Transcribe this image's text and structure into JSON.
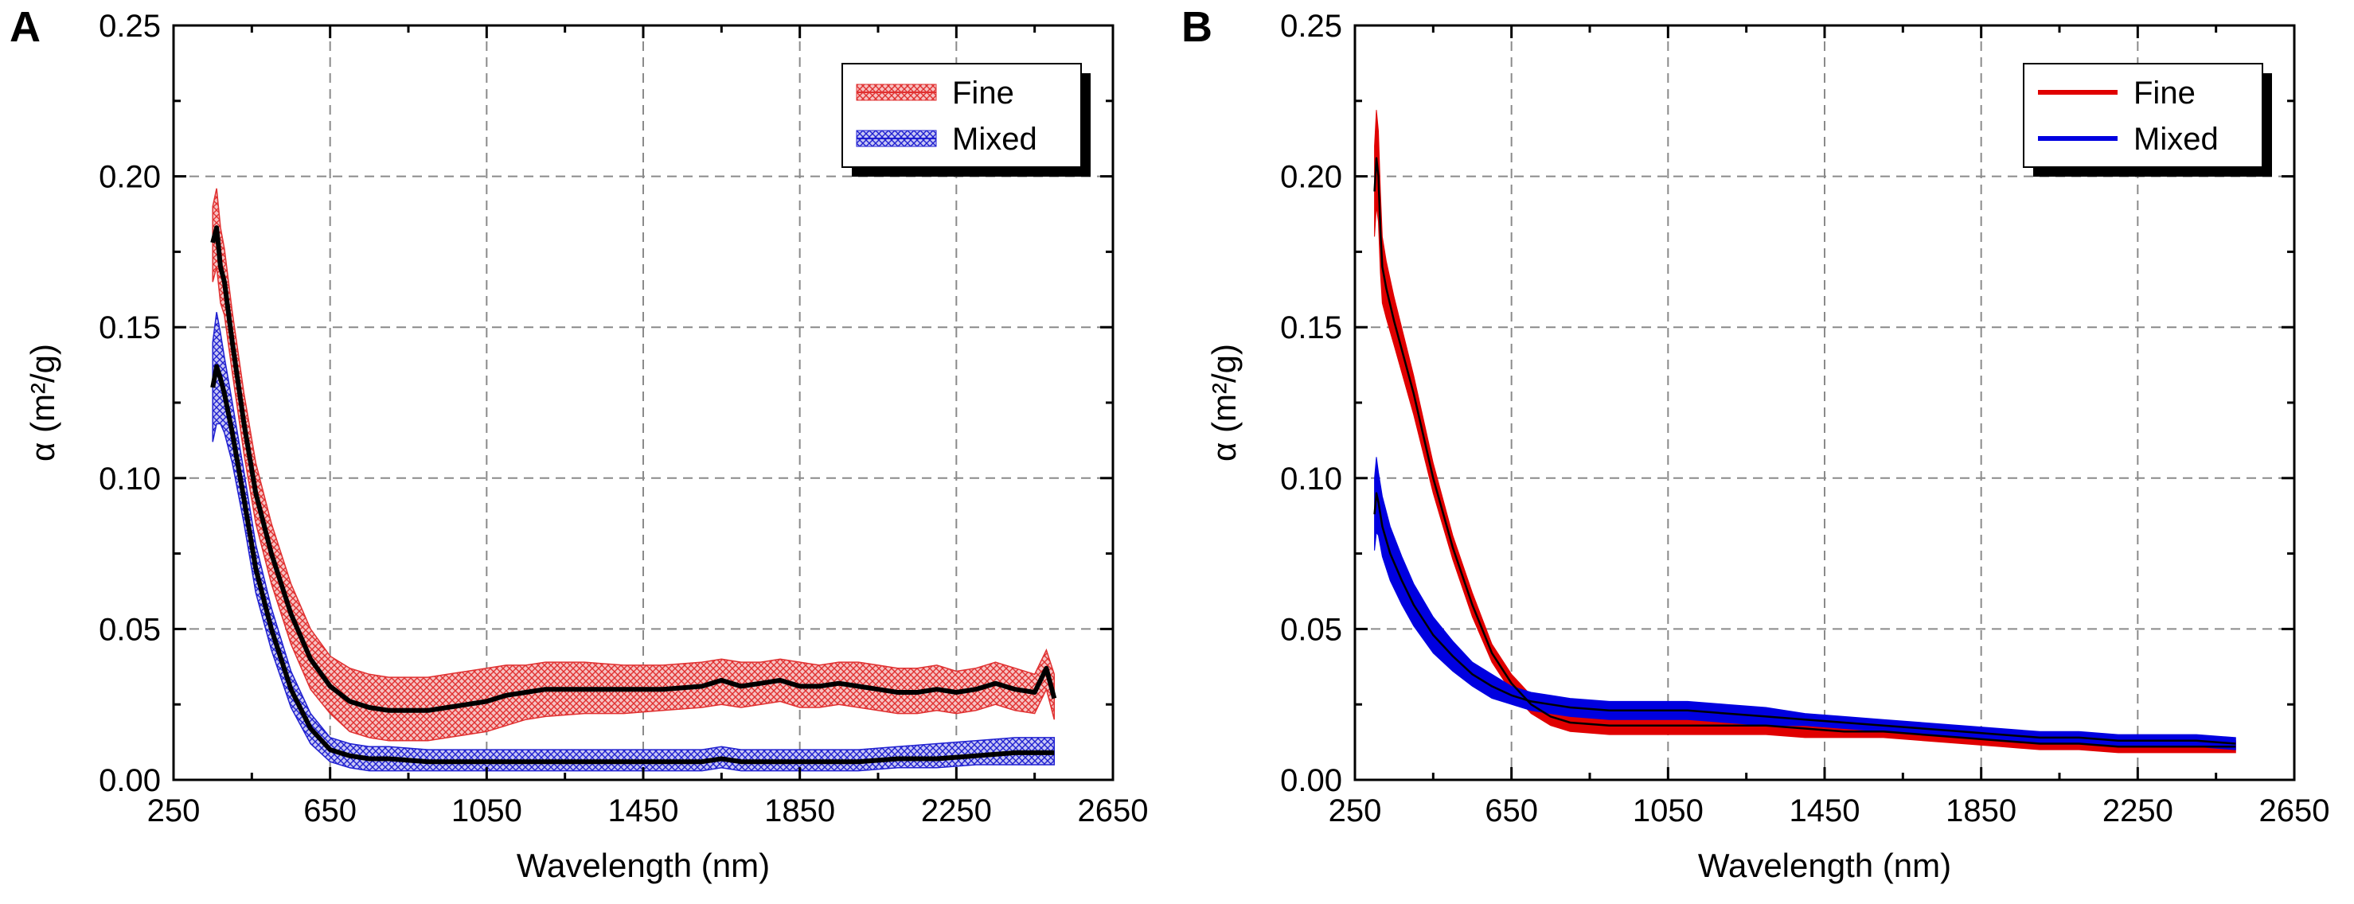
{
  "chart_data": [
    {
      "type": "area",
      "panel_label": "A",
      "title": "",
      "xlabel": "Wavelength (nm)",
      "ylabel": "α (m²/g)",
      "xlim": [
        250,
        2650
      ],
      "ylim": [
        0,
        0.25
      ],
      "xticks": [
        250,
        650,
        1050,
        1450,
        1850,
        2250,
        2650
      ],
      "yticks": [
        0.0,
        0.05,
        0.1,
        0.15,
        0.2,
        0.25
      ],
      "xtick_labels": [
        "250",
        "650",
        "1050",
        "1450",
        "1850",
        "2250",
        "2650"
      ],
      "ytick_labels": [
        "0.00",
        "0.05",
        "0.10",
        "0.15",
        "0.20",
        "0.25"
      ],
      "grid": true,
      "legend_position": "top-right",
      "band_style": "hatched",
      "series": [
        {
          "name": "Fine",
          "color": "#e03030",
          "x": [
            350,
            360,
            370,
            380,
            400,
            430,
            460,
            500,
            550,
            600,
            650,
            700,
            750,
            800,
            850,
            900,
            950,
            1000,
            1050,
            1100,
            1150,
            1200,
            1300,
            1400,
            1500,
            1600,
            1650,
            1700,
            1750,
            1800,
            1850,
            1900,
            1950,
            2000,
            2050,
            2100,
            2150,
            2200,
            2250,
            2300,
            2350,
            2400,
            2450,
            2480,
            2500
          ],
          "mean": [
            0.178,
            0.183,
            0.17,
            0.165,
            0.145,
            0.118,
            0.095,
            0.075,
            0.055,
            0.04,
            0.031,
            0.026,
            0.024,
            0.023,
            0.023,
            0.023,
            0.024,
            0.025,
            0.026,
            0.028,
            0.029,
            0.03,
            0.03,
            0.03,
            0.03,
            0.031,
            0.033,
            0.031,
            0.032,
            0.033,
            0.031,
            0.031,
            0.032,
            0.031,
            0.03,
            0.029,
            0.029,
            0.03,
            0.029,
            0.03,
            0.032,
            0.03,
            0.029,
            0.037,
            0.027
          ],
          "upper": [
            0.19,
            0.196,
            0.183,
            0.176,
            0.155,
            0.128,
            0.105,
            0.085,
            0.065,
            0.05,
            0.041,
            0.037,
            0.035,
            0.034,
            0.034,
            0.034,
            0.035,
            0.036,
            0.037,
            0.038,
            0.038,
            0.039,
            0.039,
            0.038,
            0.038,
            0.039,
            0.04,
            0.039,
            0.039,
            0.04,
            0.039,
            0.038,
            0.039,
            0.039,
            0.038,
            0.037,
            0.037,
            0.038,
            0.036,
            0.037,
            0.039,
            0.037,
            0.035,
            0.043,
            0.035
          ],
          "lower": [
            0.165,
            0.17,
            0.158,
            0.154,
            0.135,
            0.108,
            0.085,
            0.065,
            0.045,
            0.03,
            0.022,
            0.016,
            0.014,
            0.013,
            0.013,
            0.013,
            0.014,
            0.015,
            0.016,
            0.018,
            0.02,
            0.021,
            0.022,
            0.022,
            0.023,
            0.024,
            0.025,
            0.024,
            0.025,
            0.026,
            0.024,
            0.024,
            0.025,
            0.024,
            0.023,
            0.022,
            0.022,
            0.023,
            0.022,
            0.023,
            0.025,
            0.023,
            0.022,
            0.03,
            0.02
          ]
        },
        {
          "name": "Mixed",
          "color": "#2020d0",
          "x": [
            350,
            360,
            370,
            380,
            400,
            430,
            460,
            500,
            550,
            600,
            650,
            700,
            750,
            800,
            900,
            1000,
            1100,
            1200,
            1300,
            1400,
            1500,
            1600,
            1650,
            1700,
            1800,
            1900,
            2000,
            2100,
            2200,
            2300,
            2400,
            2450,
            2500
          ],
          "mean": [
            0.13,
            0.137,
            0.133,
            0.128,
            0.115,
            0.093,
            0.07,
            0.05,
            0.03,
            0.017,
            0.01,
            0.008,
            0.007,
            0.007,
            0.006,
            0.006,
            0.006,
            0.006,
            0.006,
            0.006,
            0.006,
            0.006,
            0.007,
            0.006,
            0.006,
            0.006,
            0.006,
            0.007,
            0.007,
            0.008,
            0.009,
            0.009,
            0.009
          ],
          "upper": [
            0.145,
            0.155,
            0.148,
            0.14,
            0.125,
            0.102,
            0.078,
            0.057,
            0.036,
            0.022,
            0.014,
            0.012,
            0.011,
            0.011,
            0.01,
            0.01,
            0.01,
            0.01,
            0.01,
            0.01,
            0.01,
            0.01,
            0.011,
            0.01,
            0.01,
            0.01,
            0.01,
            0.011,
            0.012,
            0.013,
            0.014,
            0.014,
            0.014
          ],
          "lower": [
            0.112,
            0.118,
            0.118,
            0.115,
            0.105,
            0.085,
            0.062,
            0.043,
            0.024,
            0.012,
            0.006,
            0.004,
            0.003,
            0.003,
            0.003,
            0.003,
            0.003,
            0.003,
            0.003,
            0.003,
            0.003,
            0.003,
            0.004,
            0.003,
            0.003,
            0.003,
            0.003,
            0.004,
            0.004,
            0.005,
            0.005,
            0.005,
            0.005
          ]
        }
      ]
    },
    {
      "type": "area",
      "panel_label": "B",
      "title": "",
      "xlabel": "Wavelength (nm)",
      "ylabel": "α (m²/g)",
      "xlim": [
        250,
        2650
      ],
      "ylim": [
        0,
        0.25
      ],
      "xticks": [
        250,
        650,
        1050,
        1450,
        1850,
        2250,
        2650
      ],
      "yticks": [
        0.0,
        0.05,
        0.1,
        0.15,
        0.2,
        0.25
      ],
      "xtick_labels": [
        "250",
        "650",
        "1050",
        "1450",
        "1850",
        "2250",
        "2650"
      ],
      "ytick_labels": [
        "0.00",
        "0.05",
        "0.10",
        "0.15",
        "0.20",
        "0.25"
      ],
      "grid": true,
      "legend_position": "top-right",
      "band_style": "solid",
      "series": [
        {
          "name": "Fine",
          "color": "#e00000",
          "x": [
            300,
            305,
            310,
            315,
            320,
            330,
            350,
            400,
            450,
            500,
            550,
            600,
            650,
            700,
            750,
            800,
            900,
            1000,
            1100,
            1200,
            1300,
            1400,
            1500,
            1600,
            1700,
            1800,
            1900,
            2000,
            2100,
            2200,
            2300,
            2400,
            2500
          ],
          "mean": [
            0.195,
            0.206,
            0.2,
            0.182,
            0.17,
            0.163,
            0.152,
            0.128,
            0.1,
            0.077,
            0.058,
            0.042,
            0.032,
            0.025,
            0.021,
            0.019,
            0.018,
            0.018,
            0.018,
            0.018,
            0.018,
            0.017,
            0.016,
            0.016,
            0.015,
            0.014,
            0.013,
            0.012,
            0.012,
            0.011,
            0.011,
            0.011,
            0.011
          ],
          "upper": [
            0.21,
            0.222,
            0.215,
            0.195,
            0.18,
            0.172,
            0.16,
            0.134,
            0.105,
            0.081,
            0.062,
            0.045,
            0.035,
            0.028,
            0.024,
            0.022,
            0.021,
            0.021,
            0.021,
            0.021,
            0.02,
            0.019,
            0.018,
            0.018,
            0.017,
            0.016,
            0.015,
            0.014,
            0.014,
            0.013,
            0.013,
            0.013,
            0.013
          ],
          "lower": [
            0.18,
            0.19,
            0.185,
            0.168,
            0.158,
            0.153,
            0.144,
            0.121,
            0.095,
            0.073,
            0.054,
            0.039,
            0.029,
            0.022,
            0.018,
            0.016,
            0.015,
            0.015,
            0.015,
            0.015,
            0.015,
            0.014,
            0.014,
            0.014,
            0.013,
            0.012,
            0.011,
            0.01,
            0.01,
            0.009,
            0.009,
            0.009,
            0.009
          ]
        },
        {
          "name": "Mixed",
          "color": "#0000e0",
          "x": [
            300,
            305,
            310,
            320,
            340,
            370,
            400,
            450,
            500,
            550,
            600,
            650,
            700,
            750,
            800,
            900,
            1000,
            1100,
            1200,
            1300,
            1400,
            1500,
            1600,
            1700,
            1800,
            1900,
            2000,
            2100,
            2200,
            2300,
            2400,
            2500
          ],
          "mean": [
            0.088,
            0.095,
            0.092,
            0.084,
            0.075,
            0.066,
            0.058,
            0.048,
            0.041,
            0.035,
            0.031,
            0.028,
            0.026,
            0.025,
            0.024,
            0.023,
            0.023,
            0.023,
            0.022,
            0.021,
            0.02,
            0.019,
            0.018,
            0.017,
            0.016,
            0.015,
            0.014,
            0.014,
            0.013,
            0.013,
            0.013,
            0.012
          ],
          "upper": [
            0.1,
            0.107,
            0.102,
            0.094,
            0.084,
            0.074,
            0.065,
            0.054,
            0.046,
            0.039,
            0.035,
            0.031,
            0.029,
            0.028,
            0.027,
            0.026,
            0.026,
            0.026,
            0.025,
            0.024,
            0.022,
            0.021,
            0.02,
            0.019,
            0.018,
            0.017,
            0.016,
            0.016,
            0.015,
            0.015,
            0.015,
            0.014
          ],
          "lower": [
            0.076,
            0.082,
            0.081,
            0.074,
            0.066,
            0.058,
            0.051,
            0.042,
            0.036,
            0.031,
            0.027,
            0.025,
            0.023,
            0.022,
            0.021,
            0.02,
            0.02,
            0.02,
            0.019,
            0.018,
            0.018,
            0.017,
            0.016,
            0.015,
            0.014,
            0.013,
            0.012,
            0.012,
            0.011,
            0.011,
            0.011,
            0.01
          ]
        }
      ]
    }
  ]
}
